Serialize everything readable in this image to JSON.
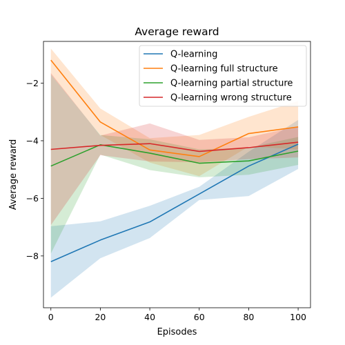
{
  "chart_data": {
    "type": "line",
    "title": "Average reward",
    "xlabel": "Episodes",
    "ylabel": "Average reward",
    "xlim": [
      -3,
      105
    ],
    "ylim": [
      -9.8,
      -0.55
    ],
    "xticks": [
      0,
      20,
      40,
      60,
      80,
      100
    ],
    "yticks": [
      -8,
      -6,
      -4,
      -2
    ],
    "grid": false,
    "legend_position": "top-right",
    "x": [
      0,
      20,
      40,
      60,
      80,
      100
    ],
    "series": [
      {
        "name": "Q-learning",
        "color": "#1f77b4",
        "values": [
          -8.2,
          -7.45,
          -6.82,
          -5.85,
          -4.88,
          -4.12
        ],
        "lower": [
          -9.45,
          -8.08,
          -7.38,
          -6.06,
          -5.92,
          -4.98
        ],
        "upper": [
          -6.97,
          -6.8,
          -6.26,
          -5.6,
          -4.38,
          -3.28
        ]
      },
      {
        "name": "Q-learning full structure",
        "color": "#ff7f0e",
        "values": [
          -1.2,
          -3.35,
          -4.32,
          -4.55,
          -3.75,
          -3.52
        ],
        "lower": [
          -1.7,
          -3.8,
          -4.76,
          -5.23,
          -4.2,
          -4.3
        ],
        "upper": [
          -0.8,
          -2.88,
          -3.91,
          -3.8,
          -3.17,
          -2.62
        ]
      },
      {
        "name": "Q-learning partial structure",
        "color": "#2ca02c",
        "values": [
          -4.88,
          -4.14,
          -4.43,
          -4.78,
          -4.7,
          -4.36
        ],
        "lower": [
          -7.92,
          -4.48,
          -5.02,
          -5.27,
          -5.18,
          -4.84
        ],
        "upper": [
          -1.7,
          -3.8,
          -3.95,
          -4.3,
          -4.24,
          -3.87
        ]
      },
      {
        "name": "Q-learning wrong structure",
        "color": "#d62728",
        "values": [
          -4.3,
          -4.16,
          -4.1,
          -4.37,
          -4.24,
          -4.05
        ],
        "lower": [
          -6.93,
          -4.5,
          -4.72,
          -4.75,
          -4.64,
          -4.58
        ],
        "upper": [
          -1.65,
          -3.82,
          -3.4,
          -3.97,
          -3.88,
          -3.5
        ]
      }
    ]
  }
}
